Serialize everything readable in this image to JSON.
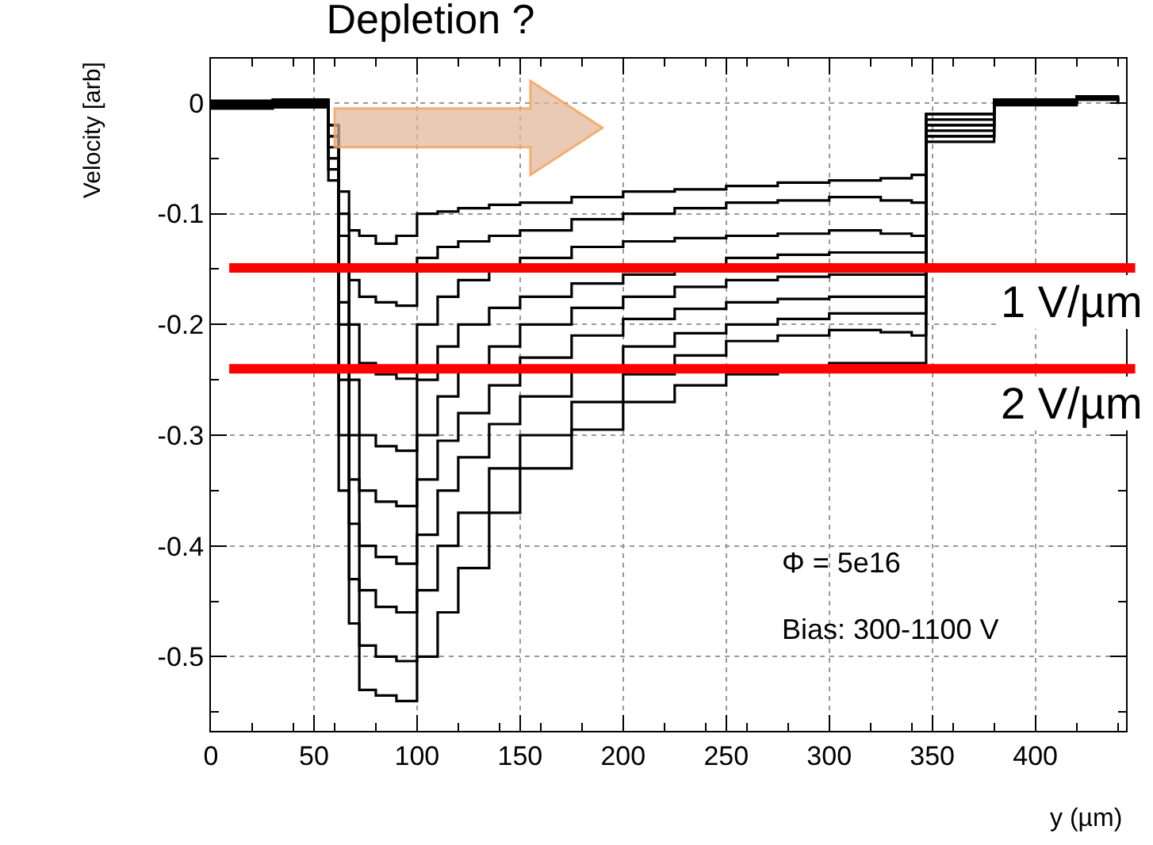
{
  "chart_data": {
    "type": "step",
    "title": "Depletion ?",
    "xlabel": "y (µm)",
    "ylabel": "Velocity [arb]",
    "xlim": [
      0,
      444
    ],
    "ylim": [
      -0.567,
      0.04
    ],
    "xticks": [
      0,
      50,
      100,
      150,
      200,
      250,
      300,
      350,
      400
    ],
    "yticks": [
      0,
      -0.1,
      -0.2,
      -0.3,
      -0.4,
      -0.5
    ],
    "grid": true,
    "marker": "none",
    "line_style": "solid",
    "x": [
      0,
      30,
      57,
      62,
      67,
      72,
      80,
      90,
      100,
      110,
      120,
      135,
      150,
      175,
      200,
      225,
      250,
      275,
      300,
      325,
      340,
      347,
      380,
      420,
      440
    ],
    "series": [
      {
        "color": "#000000",
        "values": [
          0,
          0.003,
          -0.02,
          -0.08,
          -0.115,
          -0.12,
          -0.127,
          -0.12,
          -0.1,
          -0.098,
          -0.095,
          -0.092,
          -0.09,
          -0.085,
          -0.08,
          -0.078,
          -0.075,
          -0.072,
          -0.07,
          -0.068,
          -0.065,
          -0.01,
          0.003,
          0.005,
          0
        ]
      },
      {
        "color": "#000000",
        "values": [
          -0.002,
          0.002,
          -0.02,
          -0.1,
          -0.16,
          -0.175,
          -0.18,
          -0.183,
          -0.14,
          -0.13,
          -0.125,
          -0.12,
          -0.115,
          -0.105,
          -0.1,
          -0.095,
          -0.09,
          -0.088,
          -0.085,
          -0.088,
          -0.09,
          -0.01,
          0,
          0.005,
          0.002
        ]
      },
      {
        "color": "#000000",
        "values": [
          0.002,
          -0.003,
          -0.03,
          -0.12,
          -0.2,
          -0.235,
          -0.245,
          -0.249,
          -0.2,
          -0.175,
          -0.16,
          -0.15,
          -0.14,
          -0.13,
          -0.125,
          -0.122,
          -0.12,
          -0.118,
          -0.115,
          -0.118,
          -0.12,
          -0.015,
          0.002,
          0.004,
          0.001
        ]
      },
      {
        "color": "#000000",
        "values": [
          -0.004,
          0.001,
          -0.03,
          -0.15,
          -0.25,
          -0.3,
          -0.31,
          -0.314,
          -0.25,
          -0.22,
          -0.2,
          -0.185,
          -0.175,
          -0.163,
          -0.155,
          -0.148,
          -0.14,
          -0.137,
          -0.135,
          -0.135,
          -0.135,
          -0.02,
          0,
          0.006,
          0.003
        ]
      },
      {
        "color": "#000000",
        "values": [
          0.001,
          -0.002,
          -0.04,
          -0.18,
          -0.3,
          -0.35,
          -0.36,
          -0.364,
          -0.3,
          -0.265,
          -0.24,
          -0.22,
          -0.2,
          -0.185,
          -0.175,
          -0.166,
          -0.16,
          -0.157,
          -0.155,
          -0.155,
          -0.155,
          -0.02,
          0.001,
          0.003,
          0
        ]
      },
      {
        "color": "#000000",
        "values": [
          -0.003,
          0.002,
          -0.05,
          -0.2,
          -0.34,
          -0.4,
          -0.41,
          -0.416,
          -0.34,
          -0.305,
          -0.28,
          -0.255,
          -0.23,
          -0.21,
          -0.195,
          -0.186,
          -0.18,
          -0.177,
          -0.175,
          -0.175,
          -0.175,
          -0.025,
          -0.001,
          0.004,
          0.002
        ]
      },
      {
        "color": "#000000",
        "values": [
          0,
          -0.004,
          -0.05,
          -0.25,
          -0.38,
          -0.44,
          -0.455,
          -0.46,
          -0.39,
          -0.35,
          -0.32,
          -0.29,
          -0.265,
          -0.24,
          -0.22,
          -0.208,
          -0.2,
          -0.195,
          -0.19,
          -0.19,
          -0.19,
          -0.03,
          0.002,
          0.005,
          0.001
        ]
      },
      {
        "color": "#000000",
        "values": [
          -0.002,
          0,
          -0.06,
          -0.3,
          -0.43,
          -0.49,
          -0.5,
          -0.504,
          -0.44,
          -0.4,
          -0.37,
          -0.33,
          -0.3,
          -0.27,
          -0.245,
          -0.228,
          -0.215,
          -0.21,
          -0.205,
          -0.207,
          -0.21,
          -0.03,
          0,
          0.003,
          -0.001
        ]
      },
      {
        "color": "#000000",
        "values": [
          -0.005,
          -0.002,
          -0.07,
          -0.35,
          -0.47,
          -0.53,
          -0.535,
          -0.54,
          -0.5,
          -0.46,
          -0.42,
          -0.37,
          -0.33,
          -0.295,
          -0.27,
          -0.255,
          -0.245,
          -0.24,
          -0.235,
          -0.235,
          -0.235,
          -0.035,
          -0.002,
          0.004,
          0
        ]
      }
    ],
    "ref_lines": [
      {
        "axis": "y",
        "value": -0.149,
        "label": "1 V/µm",
        "color": "#ff0000"
      },
      {
        "axis": "y",
        "value": -0.24,
        "label": "2 V/µm",
        "color": "#ff0000"
      }
    ],
    "annotations": [
      "Φ = 5e16",
      "Bias: 300-1100 V"
    ]
  }
}
